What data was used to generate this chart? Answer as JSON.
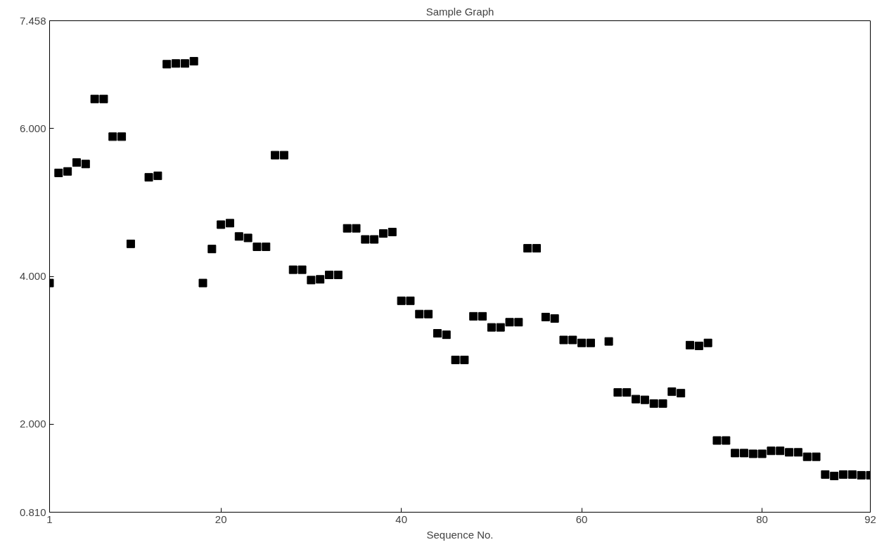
{
  "chart_data": {
    "type": "scatter",
    "title": "Sample Graph",
    "xlabel": "Sequence No.",
    "x": [
      1,
      2,
      3,
      4,
      5,
      6,
      7,
      8,
      9,
      10,
      12,
      13,
      14,
      15,
      16,
      17,
      18,
      19,
      20,
      21,
      22,
      23,
      24,
      25,
      26,
      27,
      28,
      29,
      30,
      31,
      32,
      33,
      34,
      35,
      36,
      37,
      38,
      39,
      40,
      41,
      42,
      43,
      44,
      45,
      46,
      47,
      48,
      49,
      50,
      51,
      52,
      53,
      54,
      55,
      56,
      57,
      58,
      59,
      60,
      61,
      63,
      64,
      65,
      66,
      67,
      68,
      69,
      70,
      71,
      72,
      73,
      74,
      75,
      76,
      77,
      78,
      79,
      80,
      81,
      82,
      83,
      84,
      85,
      86,
      87,
      88,
      89,
      90,
      91,
      92
    ],
    "values": [
      3.91,
      5.4,
      5.42,
      5.54,
      5.52,
      6.4,
      6.4,
      5.89,
      5.89,
      4.44,
      5.34,
      5.36,
      6.87,
      6.88,
      6.88,
      6.91,
      3.91,
      4.37,
      4.7,
      4.72,
      4.54,
      4.52,
      4.4,
      4.4,
      5.64,
      5.64,
      4.09,
      4.09,
      3.95,
      3.96,
      4.02,
      4.02,
      4.65,
      4.65,
      4.5,
      4.5,
      4.58,
      4.6,
      3.67,
      3.67,
      3.49,
      3.49,
      3.23,
      3.21,
      2.87,
      2.87,
      3.46,
      3.46,
      3.31,
      3.31,
      3.38,
      3.38,
      4.38,
      4.38,
      3.45,
      3.43,
      3.14,
      3.14,
      3.1,
      3.1,
      3.12,
      2.43,
      2.43,
      2.34,
      2.33,
      2.28,
      2.28,
      2.44,
      2.42,
      3.07,
      3.06,
      3.1,
      1.78,
      1.78,
      1.61,
      1.61,
      1.6,
      1.6,
      1.64,
      1.64,
      1.62,
      1.62,
      1.56,
      1.56,
      1.32,
      1.3,
      1.32,
      1.32,
      1.31,
      1.31
    ],
    "color": "#000000",
    "marker": "square",
    "xlim": [
      1,
      92
    ],
    "xticks": [
      1,
      20,
      40,
      60,
      80,
      92
    ],
    "ylim": [
      0.81,
      7.458
    ],
    "yticks": [
      {
        "value": 0.81,
        "label": "0.810"
      },
      {
        "value": 2,
        "label": "2.000"
      },
      {
        "value": 4,
        "label": "4.000"
      },
      {
        "value": 6,
        "label": "6.000"
      },
      {
        "value": 7.458,
        "label": "7.458"
      }
    ],
    "grid": false
  }
}
